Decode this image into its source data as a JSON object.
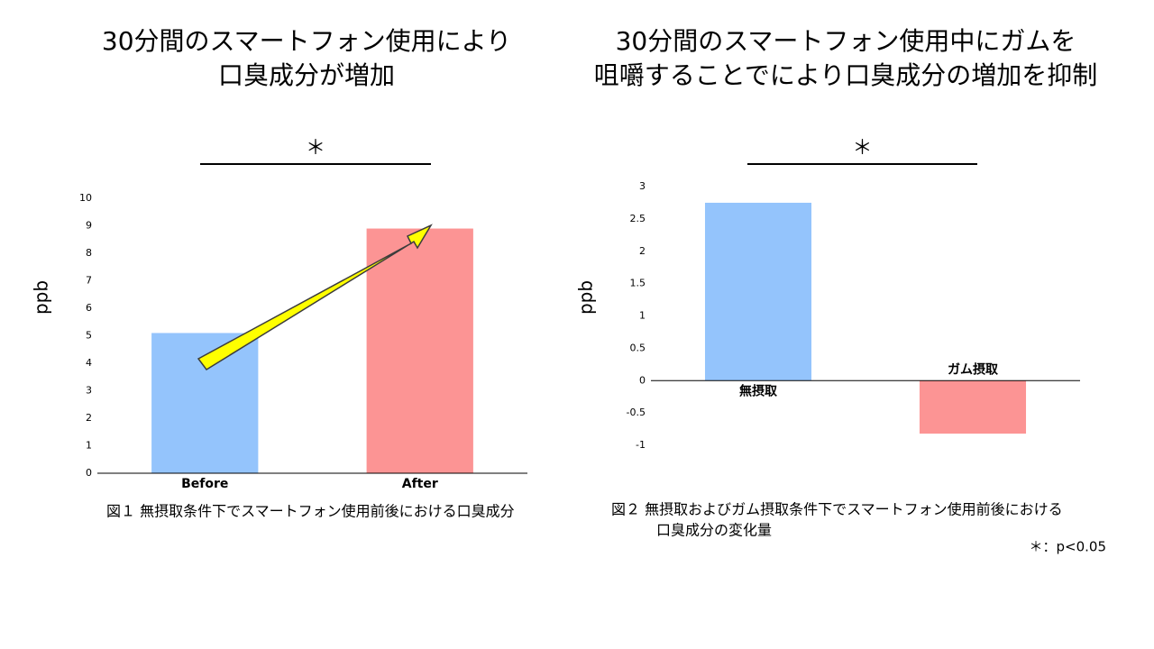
{
  "chart_data": [
    {
      "type": "bar",
      "title": [
        "30分間のスマートフォン使用により",
        "口臭成分が増加"
      ],
      "ylabel": "ppb",
      "categories": [
        "Before",
        "After"
      ],
      "values": [
        5.1,
        8.9
      ],
      "colors": [
        "#94c4fc",
        "#fc9494"
      ],
      "ylim": [
        0,
        10
      ],
      "yticks": [
        0,
        1,
        2,
        3,
        4,
        5,
        6,
        7,
        8,
        9,
        10
      ],
      "annotation": "＊",
      "caption": [
        "図１ 無摂取条件下でスマートフォン使用前後における口臭成分"
      ]
    },
    {
      "type": "bar",
      "title": [
        "30分間のスマートフォン使用中にガムを",
        "咀嚼することでにより口臭成分の増加を抑制"
      ],
      "ylabel": "ppb",
      "categories": [
        "無摂取",
        "ガム摂取"
      ],
      "values": [
        2.75,
        -0.82
      ],
      "colors": [
        "#94c4fc",
        "#fc9494"
      ],
      "ylim": [
        -1,
        3
      ],
      "yticks": [
        -1,
        -0.5,
        0,
        0.5,
        1,
        1.5,
        2,
        2.5,
        3
      ],
      "annotation": "＊",
      "caption": [
        "図２ 無摂取およびガム摂取条件下でスマートフォン使用前後における",
        "口臭成分の変化量"
      ],
      "footnote": "＊：p<0.05"
    }
  ]
}
